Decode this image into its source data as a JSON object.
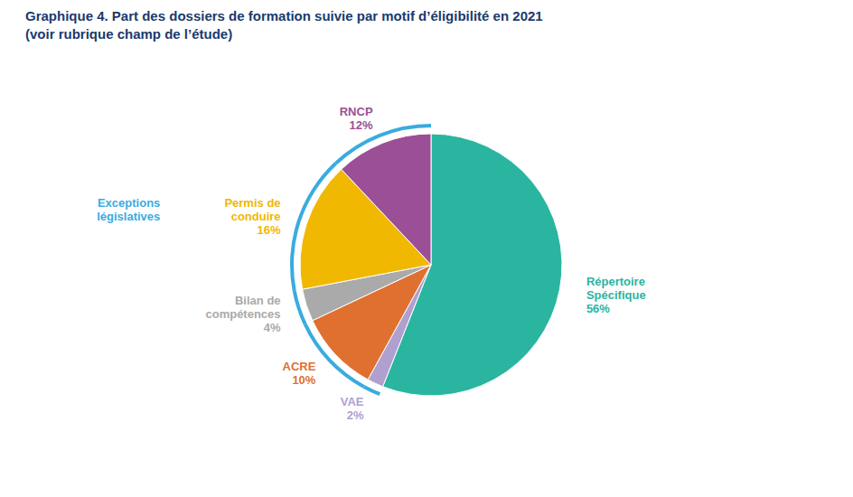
{
  "chart_data": {
    "type": "pie",
    "title": "Graphique 4. Part des dossiers de formation suivie par motif d’éligibilité en 2021",
    "subtitle": "(voir rubrique champ de l’étude)",
    "categories": [
      "Répertoire\nSpécifique",
      "VAE",
      "ACRE",
      "Bilan de\ncompétences",
      "Permis de\nconduire",
      "RNCP"
    ],
    "values": [
      56,
      2,
      10,
      4,
      16,
      12
    ],
    "value_labels": [
      "56%",
      "2%",
      "10%",
      "4%",
      "16%",
      "12%"
    ],
    "colors": [
      "#2ab5a0",
      "#b0a0d0",
      "#e07030",
      "#aaaaaa",
      "#f0b800",
      "#9b4f96"
    ],
    "data_labels": true,
    "annotations": [
      {
        "text": "Exceptions\nlégislatives",
        "color": "#3aabdf",
        "categories": [
          "VAE",
          "ACRE",
          "Bilan de\ncompétences",
          "Permis de\nconduire",
          "RNCP"
        ]
      }
    ]
  }
}
